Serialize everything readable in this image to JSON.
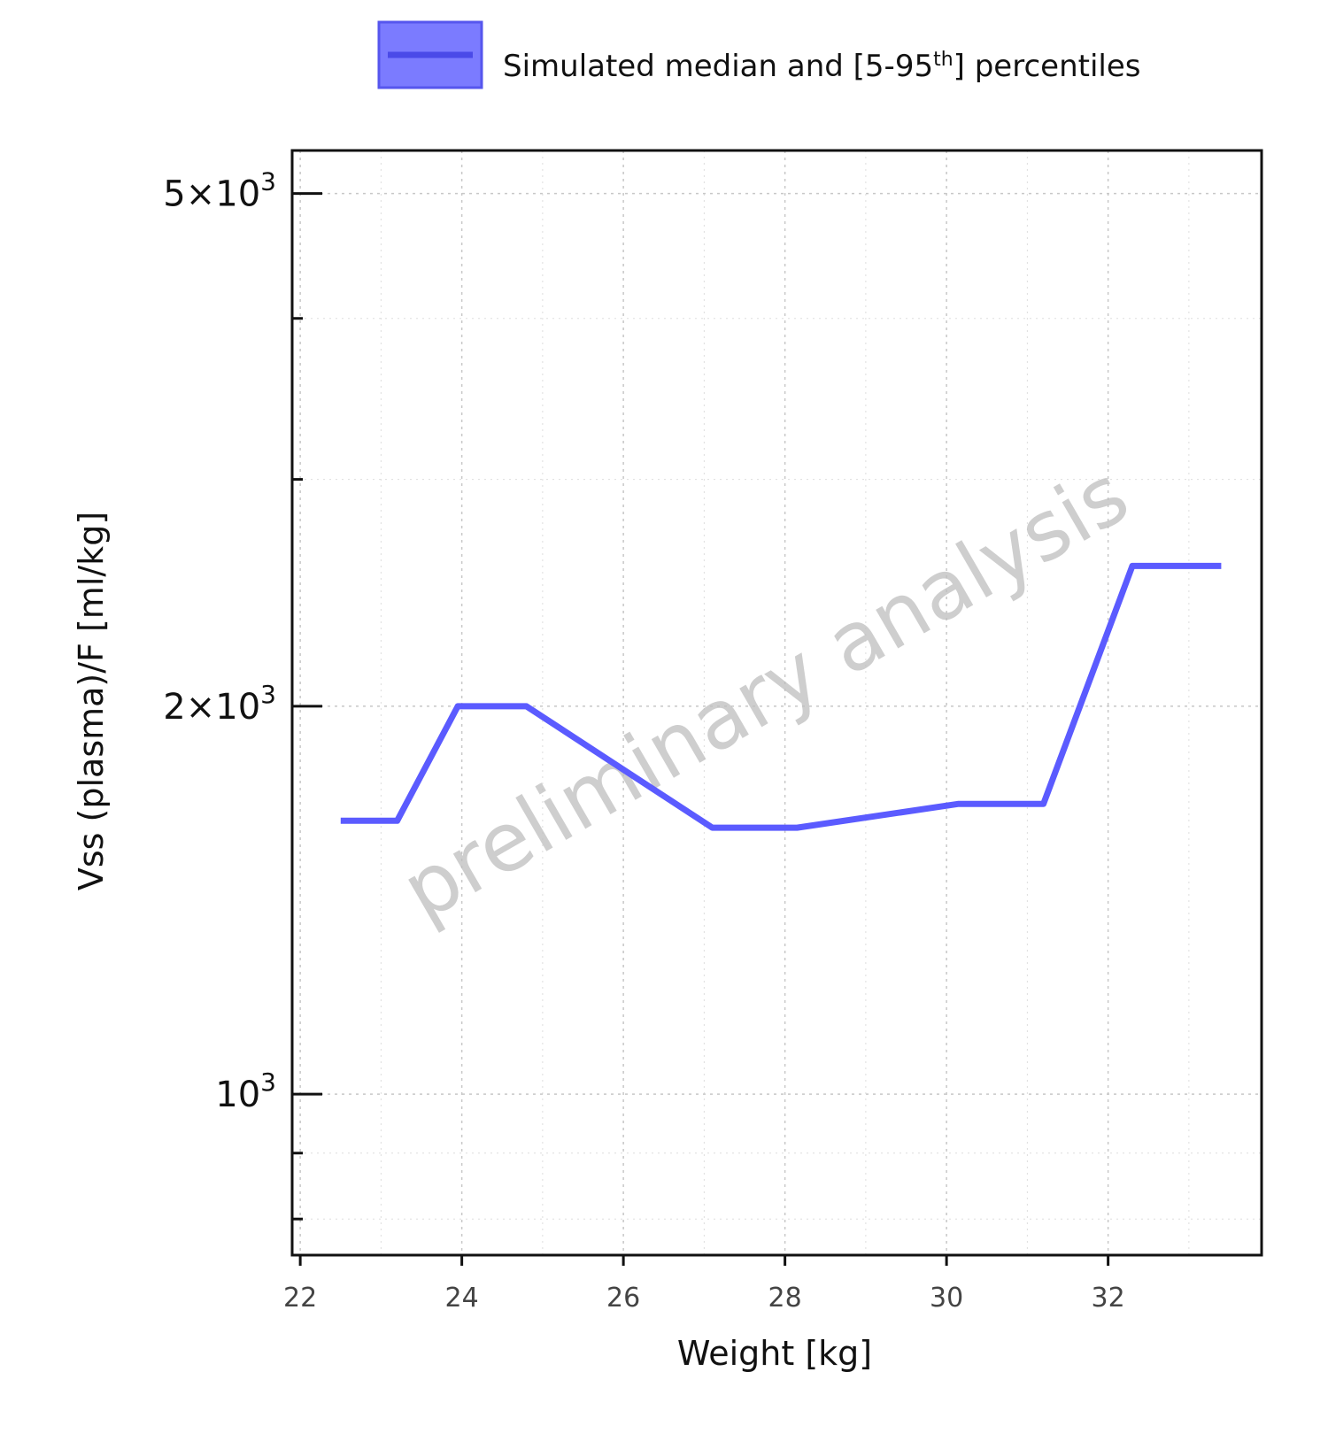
{
  "chart_data": {
    "type": "line",
    "xlabel": "Weight [kg]",
    "ylabel": "Vss (plasma)/F [ml/kg]",
    "watermark": "preliminary analysis",
    "yscale": "log",
    "xlim": [
      21.9,
      33.9
    ],
    "ylim": [
      750,
      5400
    ],
    "x_ticks": [
      22,
      24,
      26,
      28,
      30,
      32
    ],
    "x_minor_ticks": [
      23,
      25,
      27,
      29,
      31,
      33
    ],
    "y_major_ticks": [
      {
        "value": 1000,
        "mantissa": "",
        "exponent": "3"
      },
      {
        "value": 2000,
        "mantissa": "2",
        "exponent": "3"
      },
      {
        "value": 5000,
        "mantissa": "5",
        "exponent": "3"
      }
    ],
    "y_minor_ticks": [
      800,
      900,
      3000,
      4000
    ],
    "grid": true,
    "legend": {
      "position": "top",
      "label_prefix": "Simulated median and [5-95",
      "label_sup": "th",
      "label_suffix": "] percentiles"
    },
    "colors": {
      "series": "#5b5bff",
      "legend_fill": "#7b7bff",
      "legend_stroke": "#5656ee",
      "axis": "#111111"
    },
    "series": [
      {
        "name": "Simulated median and [5-95th] percentiles",
        "x": [
          22.5,
          23.2,
          23.95,
          24.8,
          27.1,
          28.15,
          30.15,
          31.2,
          32.3,
          33.4
        ],
        "y": [
          1630,
          1630,
          2000,
          2000,
          1610,
          1610,
          1680,
          1680,
          2570,
          2570
        ]
      }
    ]
  }
}
